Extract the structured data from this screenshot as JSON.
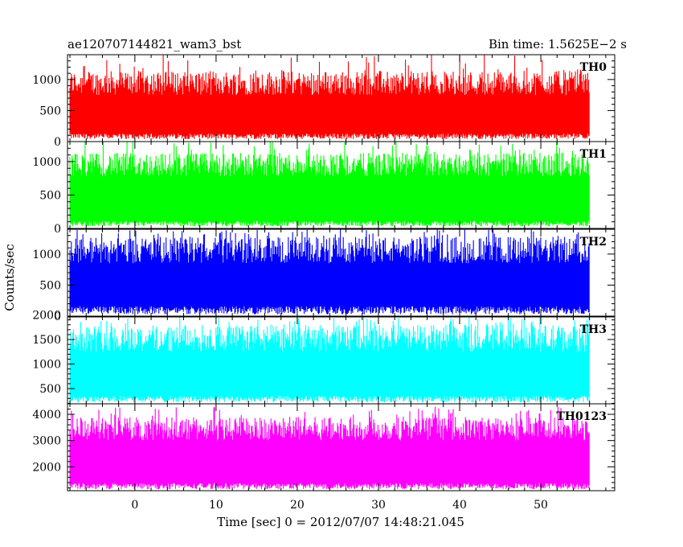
{
  "header": {
    "left_title": "ae120707144821_wam3_bst",
    "right_title": "Bin time: 1.5625E−2 s"
  },
  "axes": {
    "ylabel": "Counts/sec",
    "xlabel": "Time [sec] 0 = 2012/07/07 14:48:21.045",
    "xlim": [
      -8.3,
      59.1
    ],
    "x_ticks": [
      0,
      10,
      20,
      30,
      40,
      50
    ],
    "x_data_range": [
      -8.0,
      56.0
    ]
  },
  "chart_data": [
    {
      "type": "line",
      "name": "TH0",
      "color": "#ff0000",
      "ylim": [
        0,
        1400
      ],
      "y_ticks": [
        0,
        500,
        1000
      ],
      "baseline_range": [
        40,
        130
      ],
      "peak_range": [
        750,
        1140
      ],
      "max_spike": 1420
    },
    {
      "type": "line",
      "name": "TH1",
      "color": "#00ff00",
      "ylim": [
        0,
        1300
      ],
      "y_ticks": [
        0,
        500,
        1000
      ],
      "baseline_range": [
        30,
        110
      ],
      "peak_range": [
        780,
        1130
      ],
      "max_spike": 1330
    },
    {
      "type": "line",
      "name": "TH2",
      "color": "#0000ff",
      "ylim": [
        0,
        1400
      ],
      "y_ticks": [
        0,
        500,
        1000
      ],
      "baseline_range": [
        30,
        160
      ],
      "peak_range": [
        850,
        1280
      ],
      "max_spike": 1400
    },
    {
      "type": "line",
      "name": "TH3",
      "color": "#00ffff",
      "ylim": [
        190,
        1960
      ],
      "y_ticks": [
        500,
        1000,
        1500,
        2000
      ],
      "baseline_range": [
        220,
        350
      ],
      "peak_range": [
        1250,
        1800
      ],
      "max_spike": 1960
    },
    {
      "type": "line",
      "name": "TH0123",
      "color": "#ff00ff",
      "ylim": [
        1090,
        4400
      ],
      "y_ticks": [
        2000,
        3000,
        4000
      ],
      "baseline_range": [
        1150,
        1380
      ],
      "peak_range": [
        3000,
        3900
      ],
      "max_spike": 4300
    }
  ]
}
